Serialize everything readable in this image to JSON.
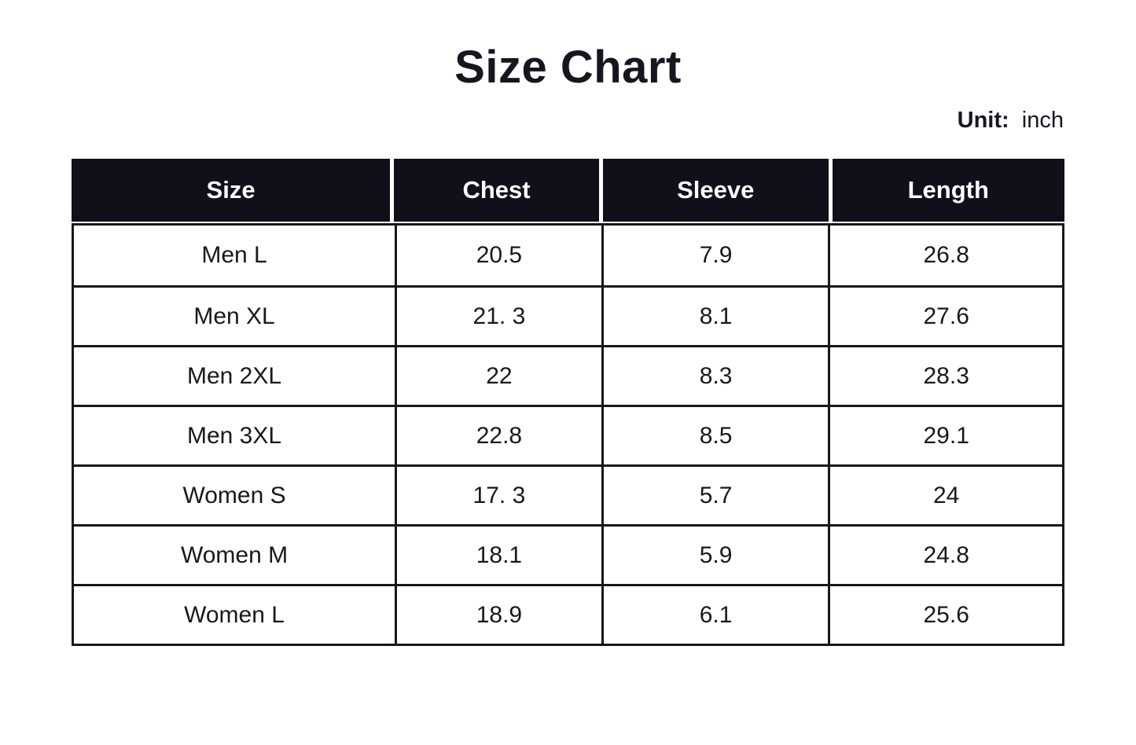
{
  "title": "Size Chart",
  "unit": {
    "label": "Unit:",
    "value": "inch"
  },
  "colors": {
    "page_bg": "#ffffff",
    "header_bg": "#10101b",
    "header_text": "#ffffff",
    "border": "#17171c",
    "title_text": "#16161f",
    "body_text": "#191919"
  },
  "chart_data": {
    "type": "table",
    "title": "Size Chart",
    "unit": "inch",
    "columns": [
      "Size",
      "Chest",
      "Sleeve",
      "Length"
    ],
    "rows": [
      [
        "Men L",
        "20.5",
        "7.9",
        "26.8"
      ],
      [
        "Men XL",
        "21. 3",
        "8.1",
        "27.6"
      ],
      [
        "Men 2XL",
        "22",
        "8.3",
        "28.3"
      ],
      [
        "Men 3XL",
        "22.8",
        "8.5",
        "29.1"
      ],
      [
        "Women S",
        "17. 3",
        "5.7",
        "24"
      ],
      [
        "Women M",
        "18.1",
        "5.9",
        "24.8"
      ],
      [
        "Women L",
        "18.9",
        "6.1",
        "25.6"
      ]
    ]
  }
}
